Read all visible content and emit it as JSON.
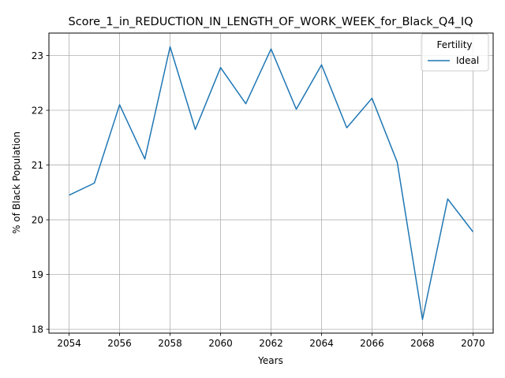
{
  "chart_data": {
    "type": "line",
    "title": "Score_1_in_REDUCTION_IN_LENGTH_OF_WORK_WEEK_for_Black_Q4_IQ",
    "xlabel": "Years",
    "ylabel": "% of Black Population",
    "xlim": [
      2053.2,
      2070.8
    ],
    "ylim": [
      17.93,
      23.41
    ],
    "xticks": [
      2054,
      2056,
      2058,
      2060,
      2062,
      2064,
      2066,
      2068,
      2070
    ],
    "yticks": [
      18,
      19,
      20,
      21,
      22,
      23
    ],
    "grid": true,
    "legend": {
      "title": "Fertility",
      "position": "top-right"
    },
    "series": [
      {
        "name": "Ideal",
        "color": "#1f77b4",
        "x": [
          2054,
          2055,
          2056,
          2057,
          2058,
          2059,
          2060,
          2061,
          2062,
          2063,
          2064,
          2065,
          2066,
          2067,
          2068,
          2069,
          2070
        ],
        "y": [
          20.45,
          20.67,
          22.1,
          21.11,
          23.16,
          21.65,
          22.78,
          22.12,
          23.12,
          22.02,
          22.83,
          21.68,
          22.22,
          21.05,
          18.18,
          20.38,
          19.78
        ]
      }
    ]
  }
}
